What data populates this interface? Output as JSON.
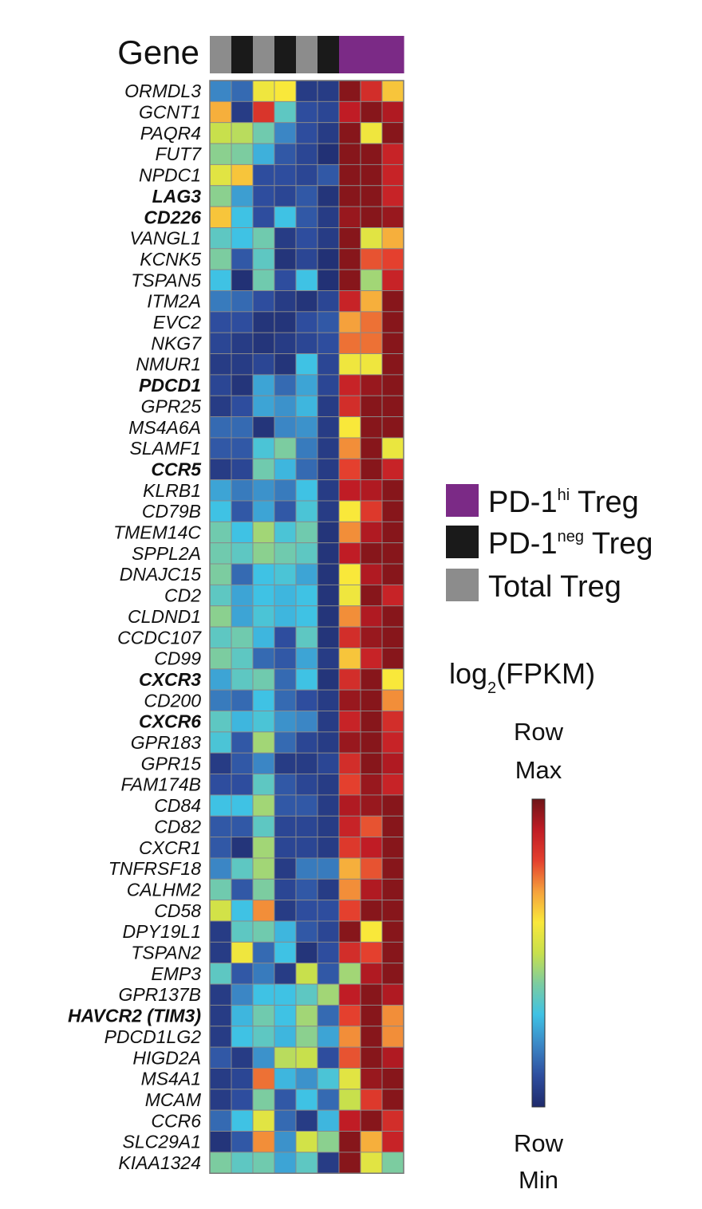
{
  "chart_data": {
    "type": "heatmap",
    "header_label": "Gene",
    "column_groups": [
      {
        "group": "total",
        "color": "#8c8c8c"
      },
      {
        "group": "neg",
        "color": "#1a1a1a"
      },
      {
        "group": "total",
        "color": "#8c8c8c"
      },
      {
        "group": "neg",
        "color": "#1a1a1a"
      },
      {
        "group": "total",
        "color": "#8c8c8c"
      },
      {
        "group": "neg",
        "color": "#1a1a1a"
      },
      {
        "group": "hi",
        "color": "#7b2a86"
      },
      {
        "group": "hi",
        "color": "#7b2a86"
      },
      {
        "group": "hi",
        "color": "#7b2a86"
      }
    ],
    "value_scale": "row-normalized 0 (Row Min) to 1 (Row Max)",
    "rows": [
      {
        "gene": "ORMDL3",
        "bold": false,
        "values": [
          0.2,
          0.15,
          0.58,
          0.6,
          0.05,
          0.05,
          0.97,
          0.85,
          0.65
        ]
      },
      {
        "gene": "GCNT1",
        "bold": false,
        "values": [
          0.68,
          0.05,
          0.83,
          0.35,
          0.1,
          0.08,
          0.9,
          0.97,
          0.92
        ]
      },
      {
        "gene": "PAQR4",
        "bold": false,
        "values": [
          0.5,
          0.48,
          0.38,
          0.2,
          0.1,
          0.05,
          0.97,
          0.58,
          0.97
        ]
      },
      {
        "gene": "FUT7",
        "bold": false,
        "values": [
          0.42,
          0.4,
          0.27,
          0.12,
          0.08,
          0.02,
          0.97,
          0.97,
          0.88
        ]
      },
      {
        "gene": "NPDC1",
        "bold": false,
        "values": [
          0.55,
          0.65,
          0.1,
          0.1,
          0.08,
          0.12,
          0.97,
          0.97,
          0.88
        ]
      },
      {
        "gene": "LAG3",
        "bold": true,
        "values": [
          0.42,
          0.24,
          0.1,
          0.08,
          0.12,
          0.03,
          0.97,
          0.97,
          0.88
        ]
      },
      {
        "gene": "CD226",
        "bold": true,
        "values": [
          0.65,
          0.3,
          0.1,
          0.3,
          0.12,
          0.05,
          0.95,
          0.97,
          0.95
        ]
      },
      {
        "gene": "VANGL1",
        "bold": false,
        "values": [
          0.35,
          0.3,
          0.38,
          0.05,
          0.1,
          0.05,
          0.97,
          0.55,
          0.68
        ]
      },
      {
        "gene": "KCNK5",
        "bold": false,
        "values": [
          0.4,
          0.12,
          0.35,
          0.03,
          0.08,
          0.02,
          0.97,
          0.78,
          0.8
        ]
      },
      {
        "gene": "TSPAN5",
        "bold": false,
        "values": [
          0.3,
          0.02,
          0.38,
          0.1,
          0.3,
          0.02,
          0.97,
          0.45,
          0.88
        ]
      },
      {
        "gene": "ITM2A",
        "bold": false,
        "values": [
          0.18,
          0.15,
          0.1,
          0.05,
          0.03,
          0.08,
          0.88,
          0.68,
          0.97
        ]
      },
      {
        "gene": "EVC2",
        "bold": false,
        "values": [
          0.1,
          0.1,
          0.03,
          0.03,
          0.1,
          0.12,
          0.7,
          0.75,
          0.97
        ]
      },
      {
        "gene": "NKG7",
        "bold": false,
        "values": [
          0.08,
          0.05,
          0.03,
          0.05,
          0.08,
          0.1,
          0.75,
          0.75,
          0.97
        ]
      },
      {
        "gene": "NMUR1",
        "bold": false,
        "values": [
          0.05,
          0.05,
          0.08,
          0.03,
          0.3,
          0.08,
          0.58,
          0.58,
          0.97
        ]
      },
      {
        "gene": "PDCD1",
        "bold": true,
        "values": [
          0.08,
          0.03,
          0.25,
          0.15,
          0.25,
          0.08,
          0.88,
          0.95,
          0.97
        ]
      },
      {
        "gene": "GPR25",
        "bold": false,
        "values": [
          0.05,
          0.1,
          0.25,
          0.22,
          0.28,
          0.05,
          0.85,
          0.97,
          0.97
        ]
      },
      {
        "gene": "MS4A6A",
        "bold": false,
        "values": [
          0.15,
          0.15,
          0.03,
          0.2,
          0.22,
          0.05,
          0.6,
          0.97,
          0.97
        ]
      },
      {
        "gene": "SLAMF1",
        "bold": false,
        "values": [
          0.12,
          0.12,
          0.32,
          0.4,
          0.18,
          0.05,
          0.72,
          0.97,
          0.57
        ]
      },
      {
        "gene": "CCR5",
        "bold": true,
        "values": [
          0.05,
          0.08,
          0.38,
          0.28,
          0.15,
          0.05,
          0.8,
          0.97,
          0.88
        ]
      },
      {
        "gene": "KLRB1",
        "bold": false,
        "values": [
          0.25,
          0.18,
          0.22,
          0.18,
          0.3,
          0.05,
          0.9,
          0.92,
          0.97
        ]
      },
      {
        "gene": "CD79B",
        "bold": false,
        "values": [
          0.3,
          0.12,
          0.25,
          0.12,
          0.32,
          0.05,
          0.6,
          0.82,
          0.97
        ]
      },
      {
        "gene": "TMEM14C",
        "bold": false,
        "values": [
          0.38,
          0.3,
          0.45,
          0.32,
          0.38,
          0.03,
          0.72,
          0.92,
          0.97
        ]
      },
      {
        "gene": "SPPL2A",
        "bold": false,
        "values": [
          0.38,
          0.35,
          0.42,
          0.38,
          0.35,
          0.03,
          0.9,
          0.97,
          0.97
        ]
      },
      {
        "gene": "DNAJC15",
        "bold": false,
        "values": [
          0.4,
          0.15,
          0.3,
          0.32,
          0.25,
          0.03,
          0.6,
          0.92,
          0.97
        ]
      },
      {
        "gene": "CD2",
        "bold": false,
        "values": [
          0.35,
          0.25,
          0.3,
          0.28,
          0.3,
          0.03,
          0.58,
          0.97,
          0.88
        ]
      },
      {
        "gene": "CLDND1",
        "bold": false,
        "values": [
          0.42,
          0.25,
          0.32,
          0.28,
          0.3,
          0.03,
          0.72,
          0.92,
          0.97
        ]
      },
      {
        "gene": "CCDC107",
        "bold": false,
        "values": [
          0.35,
          0.38,
          0.28,
          0.1,
          0.35,
          0.03,
          0.85,
          0.95,
          0.97
        ]
      },
      {
        "gene": "CD99",
        "bold": false,
        "values": [
          0.4,
          0.35,
          0.15,
          0.12,
          0.25,
          0.05,
          0.65,
          0.88,
          0.97
        ]
      },
      {
        "gene": "CXCR3",
        "bold": true,
        "values": [
          0.25,
          0.35,
          0.38,
          0.15,
          0.3,
          0.03,
          0.85,
          0.97,
          0.6
        ]
      },
      {
        "gene": "CD200",
        "bold": false,
        "values": [
          0.18,
          0.15,
          0.3,
          0.15,
          0.1,
          0.05,
          0.95,
          0.97,
          0.72
        ]
      },
      {
        "gene": "CXCR6",
        "bold": true,
        "values": [
          0.35,
          0.28,
          0.32,
          0.22,
          0.2,
          0.05,
          0.88,
          0.97,
          0.85
        ]
      },
      {
        "gene": "GPR183",
        "bold": false,
        "values": [
          0.32,
          0.12,
          0.45,
          0.15,
          0.08,
          0.05,
          0.95,
          0.97,
          0.88
        ]
      },
      {
        "gene": "GPR15",
        "bold": false,
        "values": [
          0.05,
          0.12,
          0.2,
          0.05,
          0.05,
          0.08,
          0.85,
          0.97,
          0.92
        ]
      },
      {
        "gene": "FAM174B",
        "bold": false,
        "values": [
          0.1,
          0.1,
          0.35,
          0.12,
          0.08,
          0.05,
          0.8,
          0.95,
          0.88
        ]
      },
      {
        "gene": "CD84",
        "bold": false,
        "values": [
          0.3,
          0.3,
          0.45,
          0.12,
          0.12,
          0.05,
          0.92,
          0.95,
          0.97
        ]
      },
      {
        "gene": "CD82",
        "bold": false,
        "values": [
          0.12,
          0.12,
          0.35,
          0.08,
          0.08,
          0.05,
          0.88,
          0.78,
          0.97
        ]
      },
      {
        "gene": "CXCR1",
        "bold": false,
        "values": [
          0.12,
          0.03,
          0.45,
          0.08,
          0.08,
          0.05,
          0.82,
          0.9,
          0.97
        ]
      },
      {
        "gene": "TNFRSF18",
        "bold": false,
        "values": [
          0.2,
          0.35,
          0.45,
          0.05,
          0.18,
          0.18,
          0.68,
          0.78,
          0.97
        ]
      },
      {
        "gene": "CALHM2",
        "bold": false,
        "values": [
          0.38,
          0.12,
          0.4,
          0.08,
          0.12,
          0.05,
          0.72,
          0.92,
          0.97
        ]
      },
      {
        "gene": "CD58",
        "bold": false,
        "values": [
          0.52,
          0.3,
          0.72,
          0.05,
          0.1,
          0.1,
          0.8,
          0.97,
          0.97
        ]
      },
      {
        "gene": "DPY19L1",
        "bold": false,
        "values": [
          0.05,
          0.35,
          0.38,
          0.28,
          0.12,
          0.08,
          0.97,
          0.6,
          0.97
        ]
      },
      {
        "gene": "TSPAN2",
        "bold": false,
        "values": [
          0.05,
          0.58,
          0.15,
          0.3,
          0.03,
          0.1,
          0.85,
          0.8,
          0.97
        ]
      },
      {
        "gene": "EMP3",
        "bold": false,
        "values": [
          0.35,
          0.12,
          0.18,
          0.05,
          0.5,
          0.12,
          0.45,
          0.92,
          0.97
        ]
      },
      {
        "gene": "GPR137B",
        "bold": false,
        "values": [
          0.05,
          0.2,
          0.3,
          0.3,
          0.35,
          0.45,
          0.9,
          0.97,
          0.92
        ]
      },
      {
        "gene": "HAVCR2 (TIM3)",
        "bold": true,
        "values": [
          0.05,
          0.28,
          0.38,
          0.3,
          0.45,
          0.15,
          0.8,
          0.97,
          0.72
        ]
      },
      {
        "gene": "PDCD1LG2",
        "bold": false,
        "values": [
          0.05,
          0.3,
          0.35,
          0.28,
          0.42,
          0.25,
          0.72,
          0.97,
          0.72
        ]
      },
      {
        "gene": "HIGD2A",
        "bold": false,
        "values": [
          0.12,
          0.05,
          0.22,
          0.48,
          0.5,
          0.1,
          0.78,
          0.97,
          0.92
        ]
      },
      {
        "gene": "MS4A1",
        "bold": false,
        "values": [
          0.05,
          0.08,
          0.75,
          0.28,
          0.22,
          0.32,
          0.55,
          0.95,
          0.97
        ]
      },
      {
        "gene": "MCAM",
        "bold": false,
        "values": [
          0.05,
          0.1,
          0.4,
          0.12,
          0.3,
          0.15,
          0.5,
          0.82,
          0.97
        ]
      },
      {
        "gene": "CCR6",
        "bold": false,
        "values": [
          0.15,
          0.3,
          0.55,
          0.15,
          0.05,
          0.28,
          0.9,
          0.97,
          0.85
        ]
      },
      {
        "gene": "SLC29A1",
        "bold": false,
        "values": [
          0.03,
          0.12,
          0.72,
          0.22,
          0.52,
          0.42,
          0.97,
          0.68,
          0.88
        ]
      },
      {
        "gene": "KIAA1324",
        "bold": false,
        "values": [
          0.4,
          0.35,
          0.38,
          0.25,
          0.35,
          0.05,
          0.97,
          0.55,
          0.4
        ]
      }
    ],
    "legend": [
      {
        "label_main": "PD-1",
        "label_sup": "hi",
        "label_tail": " Treg",
        "color": "#7b2a86"
      },
      {
        "label_main": "PD-1",
        "label_sup": "neg",
        "label_tail": " Treg",
        "color": "#1a1a1a"
      },
      {
        "label_main": "Total Treg",
        "label_sup": "",
        "label_tail": "",
        "color": "#8c8c8c"
      }
    ],
    "colorbar": {
      "title_main": "log",
      "title_sub": "2",
      "title_tail": "(FPKM)",
      "max_label_1": "Row",
      "max_label_2": "Max",
      "min_label_1": "Row",
      "min_label_2": "Min",
      "stops": [
        "#1f2a6b",
        "#2e4d9e",
        "#3b86c5",
        "#3fc2e4",
        "#7ccca0",
        "#c8e04c",
        "#f9e83a",
        "#f5a13c",
        "#e4402e",
        "#c01c25",
        "#6f1417"
      ]
    }
  }
}
